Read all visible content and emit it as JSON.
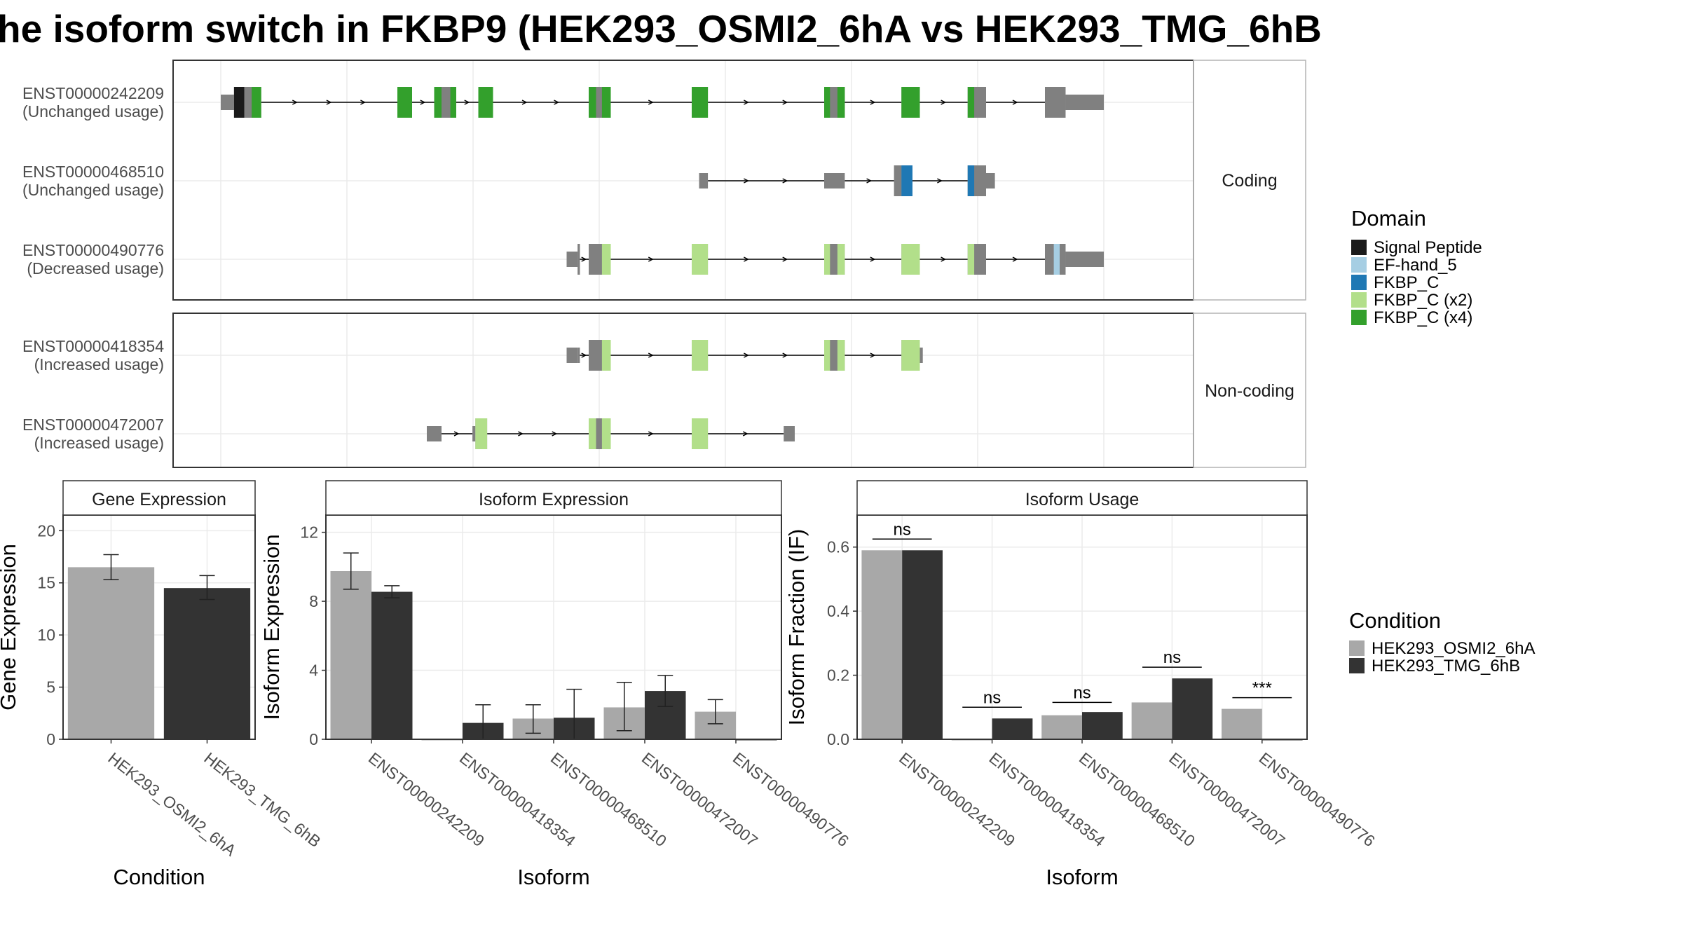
{
  "title": "he isoform switch in FKBP9 (HEK293_OSMI2_6hA vs HEK293_TMG_6hB",
  "colors": {
    "signal_peptide": "#1a1a1a",
    "ef_hand_5": "#a6cee3",
    "fkbp_c": "#1f78b4",
    "fkbp_c_x2": "#b2df8a",
    "fkbp_c_x4": "#33a02c",
    "exon_gray": "#808080",
    "cond_a": "#a8a8a8",
    "cond_b": "#333333",
    "grid": "#ebebeb",
    "strip_fill": "#ffffff"
  },
  "structure": {
    "panels": [
      {
        "strip": "Coding",
        "transcripts": [
          {
            "id": "ENST00000242209",
            "usage": "(Unchanged usage)",
            "exons": [
              {
                "s": 0,
                "e": 18,
                "coding": false
              },
              {
                "s": 18,
                "e": 55,
                "coding": true,
                "domains": [
                  {
                    "s": 18,
                    "e": 32,
                    "d": "signal_peptide"
                  },
                  {
                    "s": 32,
                    "e": 42,
                    "d": "exon_gray"
                  },
                  {
                    "s": 42,
                    "e": 55,
                    "d": "fkbp_c_x4"
                  }
                ]
              },
              {
                "s": 240,
                "e": 260,
                "coding": true,
                "domains": [
                  {
                    "s": 240,
                    "e": 260,
                    "d": "fkbp_c_x4"
                  }
                ]
              },
              {
                "s": 290,
                "e": 320,
                "coding": true,
                "domains": [
                  {
                    "s": 290,
                    "e": 300,
                    "d": "fkbp_c_x4"
                  },
                  {
                    "s": 300,
                    "e": 312,
                    "d": "exon_gray"
                  },
                  {
                    "s": 312,
                    "e": 320,
                    "d": "fkbp_c_x4"
                  }
                ]
              },
              {
                "s": 350,
                "e": 370,
                "coding": true,
                "domains": [
                  {
                    "s": 350,
                    "e": 370,
                    "d": "fkbp_c_x4"
                  }
                ]
              },
              {
                "s": 500,
                "e": 530,
                "coding": true,
                "domains": [
                  {
                    "s": 500,
                    "e": 510,
                    "d": "fkbp_c_x4"
                  },
                  {
                    "s": 510,
                    "e": 518,
                    "d": "exon_gray"
                  },
                  {
                    "s": 518,
                    "e": 530,
                    "d": "fkbp_c_x4"
                  }
                ]
              },
              {
                "s": 640,
                "e": 662,
                "coding": true,
                "domains": [
                  {
                    "s": 640,
                    "e": 662,
                    "d": "fkbp_c_x4"
                  }
                ]
              },
              {
                "s": 820,
                "e": 848,
                "coding": true,
                "domains": [
                  {
                    "s": 820,
                    "e": 828,
                    "d": "fkbp_c_x4"
                  },
                  {
                    "s": 828,
                    "e": 838,
                    "d": "exon_gray"
                  },
                  {
                    "s": 838,
                    "e": 848,
                    "d": "fkbp_c_x4"
                  }
                ]
              },
              {
                "s": 925,
                "e": 950,
                "coding": true,
                "domains": [
                  {
                    "s": 925,
                    "e": 950,
                    "d": "fkbp_c_x4"
                  }
                ]
              },
              {
                "s": 1015,
                "e": 1040,
                "coding": true,
                "domains": [
                  {
                    "s": 1015,
                    "e": 1024,
                    "d": "fkbp_c_x4"
                  },
                  {
                    "s": 1024,
                    "e": 1040,
                    "d": "exon_gray"
                  }
                ]
              },
              {
                "s": 1120,
                "e": 1148,
                "coding": true,
                "domains": [
                  {
                    "s": 1120,
                    "e": 1148,
                    "d": "exon_gray"
                  }
                ]
              },
              {
                "s": 1148,
                "e": 1200,
                "coding": false
              }
            ]
          },
          {
            "id": "ENST00000468510",
            "usage": "(Unchanged usage)",
            "exons": [
              {
                "s": 650,
                "e": 662,
                "coding": false
              },
              {
                "s": 820,
                "e": 848,
                "coding": false
              },
              {
                "s": 915,
                "e": 925,
                "coding": true,
                "domains": [
                  {
                    "s": 915,
                    "e": 925,
                    "d": "exon_gray"
                  }
                ]
              },
              {
                "s": 925,
                "e": 940,
                "coding": true,
                "domains": [
                  {
                    "s": 925,
                    "e": 940,
                    "d": "fkbp_c"
                  }
                ]
              },
              {
                "s": 1015,
                "e": 1040,
                "coding": true,
                "domains": [
                  {
                    "s": 1015,
                    "e": 1024,
                    "d": "fkbp_c"
                  },
                  {
                    "s": 1024,
                    "e": 1040,
                    "d": "exon_gray"
                  }
                ]
              },
              {
                "s": 1040,
                "e": 1052,
                "coding": false
              }
            ]
          },
          {
            "id": "ENST00000490776",
            "usage": "(Decreased usage)",
            "exons": [
              {
                "s": 470,
                "e": 485,
                "coding": false
              },
              {
                "s": 485,
                "e": 488,
                "coding": true,
                "domains": [
                  {
                    "s": 485,
                    "e": 488,
                    "d": "exon_gray"
                  }
                ]
              },
              {
                "s": 500,
                "e": 530,
                "coding": true,
                "domains": [
                  {
                    "s": 500,
                    "e": 518,
                    "d": "exon_gray"
                  },
                  {
                    "s": 518,
                    "e": 530,
                    "d": "fkbp_c_x2"
                  }
                ]
              },
              {
                "s": 640,
                "e": 662,
                "coding": true,
                "domains": [
                  {
                    "s": 640,
                    "e": 662,
                    "d": "fkbp_c_x2"
                  }
                ]
              },
              {
                "s": 820,
                "e": 848,
                "coding": true,
                "domains": [
                  {
                    "s": 820,
                    "e": 828,
                    "d": "fkbp_c_x2"
                  },
                  {
                    "s": 828,
                    "e": 838,
                    "d": "exon_gray"
                  },
                  {
                    "s": 838,
                    "e": 848,
                    "d": "fkbp_c_x2"
                  }
                ]
              },
              {
                "s": 925,
                "e": 950,
                "coding": true,
                "domains": [
                  {
                    "s": 925,
                    "e": 950,
                    "d": "fkbp_c_x2"
                  }
                ]
              },
              {
                "s": 1015,
                "e": 1040,
                "coding": true,
                "domains": [
                  {
                    "s": 1015,
                    "e": 1024,
                    "d": "fkbp_c_x2"
                  },
                  {
                    "s": 1024,
                    "e": 1040,
                    "d": "exon_gray"
                  }
                ]
              },
              {
                "s": 1120,
                "e": 1148,
                "coding": true,
                "domains": [
                  {
                    "s": 1120,
                    "e": 1132,
                    "d": "exon_gray"
                  },
                  {
                    "s": 1132,
                    "e": 1140,
                    "d": "ef_hand_5"
                  },
                  {
                    "s": 1140,
                    "e": 1148,
                    "d": "exon_gray"
                  }
                ]
              },
              {
                "s": 1148,
                "e": 1200,
                "coding": false
              }
            ]
          }
        ]
      },
      {
        "strip": "Non-coding",
        "transcripts": [
          {
            "id": "ENST00000418354",
            "usage": "(Increased usage)",
            "exons": [
              {
                "s": 470,
                "e": 485,
                "coding": false
              },
              {
                "s": 485,
                "e": 488,
                "coding": false
              },
              {
                "s": 500,
                "e": 530,
                "coding": true,
                "domains": [
                  {
                    "s": 500,
                    "e": 518,
                    "d": "exon_gray"
                  },
                  {
                    "s": 518,
                    "e": 530,
                    "d": "fkbp_c_x2"
                  }
                ]
              },
              {
                "s": 640,
                "e": 662,
                "coding": true,
                "domains": [
                  {
                    "s": 640,
                    "e": 662,
                    "d": "fkbp_c_x2"
                  }
                ]
              },
              {
                "s": 820,
                "e": 848,
                "coding": true,
                "domains": [
                  {
                    "s": 820,
                    "e": 828,
                    "d": "fkbp_c_x2"
                  },
                  {
                    "s": 828,
                    "e": 838,
                    "d": "exon_gray"
                  },
                  {
                    "s": 838,
                    "e": 848,
                    "d": "fkbp_c_x2"
                  }
                ]
              },
              {
                "s": 925,
                "e": 950,
                "coding": true,
                "domains": [
                  {
                    "s": 925,
                    "e": 950,
                    "d": "fkbp_c_x2"
                  }
                ]
              },
              {
                "s": 950,
                "e": 954,
                "coding": false
              }
            ]
          },
          {
            "id": "ENST00000472007",
            "usage": "(Increased usage)",
            "exons": [
              {
                "s": 280,
                "e": 300,
                "coding": false
              },
              {
                "s": 342,
                "e": 346,
                "coding": false
              },
              {
                "s": 346,
                "e": 362,
                "coding": true,
                "domains": [
                  {
                    "s": 346,
                    "e": 362,
                    "d": "fkbp_c_x2"
                  }
                ]
              },
              {
                "s": 500,
                "e": 530,
                "coding": true,
                "domains": [
                  {
                    "s": 500,
                    "e": 510,
                    "d": "fkbp_c_x2"
                  },
                  {
                    "s": 510,
                    "e": 518,
                    "d": "exon_gray"
                  },
                  {
                    "s": 518,
                    "e": 530,
                    "d": "fkbp_c_x2"
                  }
                ]
              },
              {
                "s": 640,
                "e": 662,
                "coding": true,
                "domains": [
                  {
                    "s": 640,
                    "e": 662,
                    "d": "fkbp_c_x2"
                  }
                ]
              },
              {
                "s": 765,
                "e": 780,
                "coding": false
              }
            ]
          }
        ]
      }
    ]
  },
  "domain_legend": {
    "title": "Domain",
    "items": [
      {
        "label": "Signal Peptide",
        "color_key": "signal_peptide"
      },
      {
        "label": "EF-hand_5",
        "color_key": "ef_hand_5"
      },
      {
        "label": "FKBP_C",
        "color_key": "fkbp_c"
      },
      {
        "label": "FKBP_C (x2)",
        "color_key": "fkbp_c_x2"
      },
      {
        "label": "FKBP_C (x4)",
        "color_key": "fkbp_c_x4"
      }
    ]
  },
  "condition_legend": {
    "title": "Condition",
    "items": [
      {
        "label": "HEK293_OSMI2_6hA",
        "color_key": "cond_a"
      },
      {
        "label": "HEK293_TMG_6hB",
        "color_key": "cond_b"
      }
    ]
  },
  "chart_data": [
    {
      "type": "bar",
      "title": "Gene Expression",
      "xlabel": "Condition",
      "ylabel": "Gene Expression",
      "ylim": [
        0,
        21.5
      ],
      "yticks": [
        0,
        5,
        10,
        15,
        20
      ],
      "categories": [
        "HEK293_OSMI2_6hA",
        "HEK293_TMG_6hB"
      ],
      "series": [
        {
          "values": [
            16.5,
            14.5
          ],
          "err_low": [
            15.3,
            13.4
          ],
          "err_high": [
            17.7,
            15.7
          ],
          "color_keys": [
            "cond_a",
            "cond_b"
          ]
        }
      ]
    },
    {
      "type": "bar",
      "title": "Isoform Expression",
      "xlabel": "Isoform",
      "ylabel": "Isoform Expression",
      "ylim": [
        0,
        13
      ],
      "yticks": [
        0,
        4,
        8,
        12
      ],
      "categories": [
        "ENST00000242209",
        "ENST00000418354",
        "ENST00000468510",
        "ENST00000472007",
        "ENST00000490776"
      ],
      "series": [
        {
          "name": "HEK293_OSMI2_6hA",
          "color_key": "cond_a",
          "values": [
            9.75,
            0.0,
            1.2,
            1.85,
            1.6
          ],
          "err_low": [
            8.7,
            0.0,
            0.35,
            0.5,
            0.9
          ],
          "err_high": [
            10.8,
            0.0,
            2.0,
            3.3,
            2.3
          ]
        },
        {
          "name": "HEK293_TMG_6hB",
          "color_key": "cond_b",
          "values": [
            8.55,
            0.95,
            1.25,
            2.8,
            0.0
          ],
          "err_low": [
            8.2,
            0.0,
            0.0,
            1.9,
            0.0
          ],
          "err_high": [
            8.9,
            2.0,
            2.9,
            3.7,
            0.0
          ]
        }
      ]
    },
    {
      "type": "bar",
      "title": "Isoform Usage",
      "xlabel": "Isoform",
      "ylabel": "Isoform Fraction (IF)",
      "ylim": [
        0,
        0.7
      ],
      "yticks": [
        0.0,
        0.2,
        0.4,
        0.6
      ],
      "categories": [
        "ENST00000242209",
        "ENST00000418354",
        "ENST00000468510",
        "ENST00000472007",
        "ENST00000490776"
      ],
      "series": [
        {
          "name": "HEK293_OSMI2_6hA",
          "color_key": "cond_a",
          "values": [
            0.59,
            0.0,
            0.075,
            0.115,
            0.095
          ]
        },
        {
          "name": "HEK293_TMG_6hB",
          "color_key": "cond_b",
          "values": [
            0.59,
            0.065,
            0.085,
            0.19,
            0.0
          ]
        }
      ],
      "significance": [
        {
          "label": "ns",
          "y": 0.625
        },
        {
          "label": "ns",
          "y": 0.1
        },
        {
          "label": "ns",
          "y": 0.115
        },
        {
          "label": "ns",
          "y": 0.225
        },
        {
          "label": "***",
          "y": 0.13
        }
      ]
    }
  ]
}
